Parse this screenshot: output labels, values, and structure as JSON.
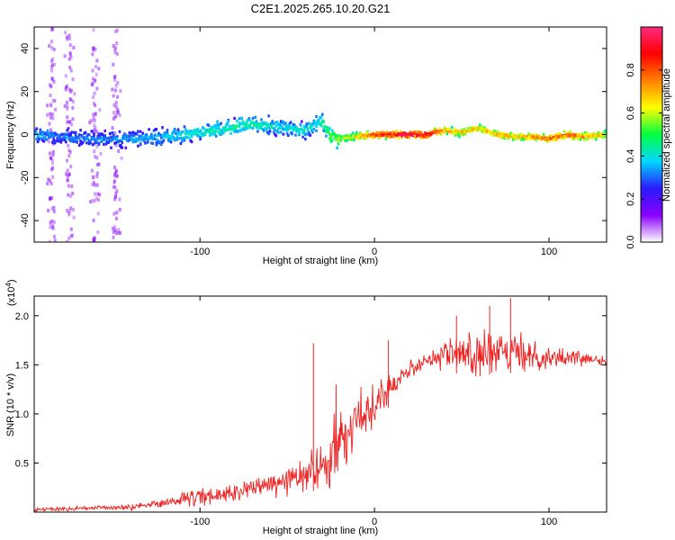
{
  "title": "C2E1.2025.265.10.20.G21",
  "chart_data": [
    {
      "type": "heatmap",
      "name": "spectrogram",
      "xlabel": "Height of straight line (km)",
      "ylabel": "Frequency (Hz)",
      "xlim": [
        -195,
        133
      ],
      "ylim": [
        -50,
        50
      ],
      "xticks": [
        -100,
        0,
        100
      ],
      "yticks": [
        -40,
        -20,
        0,
        20,
        40
      ],
      "xtick_labels": [
        "-100",
        "0",
        "100"
      ],
      "ytick_labels": [
        "-40",
        "-20",
        "0",
        "20",
        "40"
      ],
      "colorbar": {
        "label": "Normalized spectral amplitude",
        "range": [
          0,
          1
        ],
        "ticks": [
          0.0,
          0.2,
          0.4,
          0.6,
          0.8
        ],
        "tick_labels": [
          "0.0",
          "0.2",
          "0.4",
          "0.6",
          "0.8"
        ],
        "colors": [
          "#ffffff",
          "#8a00ff",
          "#2a1aff",
          "#00d8ff",
          "#00ff40",
          "#ffff00",
          "#ff8000",
          "#ff0000",
          "#ff2a80"
        ]
      },
      "ridge": {
        "x": [
          -195,
          -180,
          -160,
          -140,
          -120,
          -100,
          -85,
          -70,
          -60,
          -50,
          -40,
          -30,
          -25,
          -20,
          -10,
          0,
          10,
          20,
          30,
          40,
          50,
          60,
          70,
          80,
          90,
          100,
          110,
          120,
          133
        ],
        "freq": [
          0,
          -1,
          -2,
          -2,
          -1,
          1,
          3,
          5,
          4,
          3,
          2,
          6,
          -1,
          -2,
          -1,
          0,
          0,
          0,
          0,
          2,
          1,
          3,
          0,
          -1,
          -1,
          -2,
          0,
          -1,
          0
        ],
        "amplitude": [
          0.35,
          0.32,
          0.32,
          0.35,
          0.38,
          0.42,
          0.45,
          0.45,
          0.42,
          0.4,
          0.4,
          0.45,
          0.55,
          0.6,
          0.7,
          0.85,
          0.95,
          1.0,
          0.95,
          0.75,
          0.7,
          0.7,
          0.72,
          0.72,
          0.75,
          0.8,
          0.85,
          0.75,
          0.7
        ]
      }
    },
    {
      "type": "line",
      "name": "snr",
      "xlabel": "Height of straight line (km)",
      "ylabel": "SNR (10 * v/v)",
      "y_multiplier": "(x10",
      "y_multiplier_exp": "4",
      "y_multiplier_close": ")",
      "xlim": [
        -195,
        133
      ],
      "ylim": [
        0,
        2.2
      ],
      "xticks": [
        -100,
        0,
        100
      ],
      "yticks": [
        0.5,
        1.0,
        1.5,
        2.0
      ],
      "xtick_labels": [
        "-100",
        "0",
        "100"
      ],
      "ytick_labels": [
        "0.5",
        "1.0",
        "1.5",
        "2.0"
      ],
      "color": "#ee2222",
      "series": [
        {
          "name": "SNR",
          "x": [
            -195,
            -180,
            -160,
            -140,
            -120,
            -100,
            -80,
            -60,
            -50,
            -40,
            -30,
            -25,
            -20,
            -15,
            -10,
            -5,
            0,
            5,
            10,
            15,
            20,
            25,
            30,
            35,
            40,
            50,
            60,
            70,
            80,
            90,
            100,
            110,
            120,
            133
          ],
          "y": [
            0.03,
            0.03,
            0.04,
            0.05,
            0.1,
            0.15,
            0.2,
            0.28,
            0.32,
            0.38,
            0.45,
            0.6,
            0.7,
            0.8,
            0.95,
            1.05,
            1.1,
            1.2,
            1.3,
            1.4,
            1.45,
            1.5,
            1.55,
            1.58,
            1.6,
            1.62,
            1.6,
            1.6,
            1.62,
            1.6,
            1.58,
            1.57,
            1.57,
            1.55
          ],
          "noise": [
            0.02,
            0.02,
            0.02,
            0.03,
            0.05,
            0.07,
            0.08,
            0.1,
            0.12,
            0.15,
            0.25,
            0.35,
            0.3,
            0.25,
            0.22,
            0.2,
            0.18,
            0.15,
            0.12,
            0.1,
            0.08,
            0.08,
            0.08,
            0.1,
            0.15,
            0.18,
            0.2,
            0.2,
            0.18,
            0.15,
            0.1,
            0.07,
            0.06,
            0.05
          ]
        }
      ],
      "peaks": [
        {
          "x": -35,
          "y": 1.72
        },
        {
          "x": -22,
          "y": 1.3
        },
        {
          "x": 8,
          "y": 1.75
        },
        {
          "x": 47,
          "y": 2.0
        },
        {
          "x": 66,
          "y": 2.1
        },
        {
          "x": 78,
          "y": 2.18
        }
      ]
    }
  ]
}
